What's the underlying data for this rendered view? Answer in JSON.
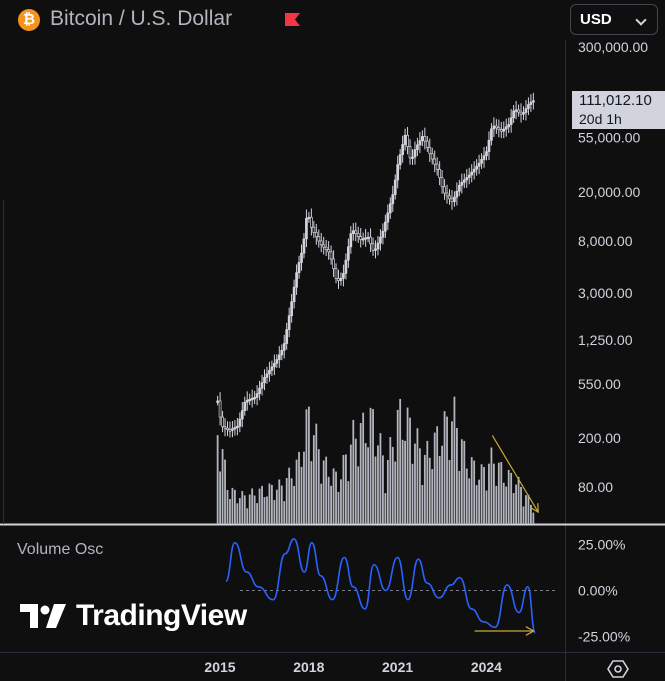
{
  "header": {
    "title": "Bitcoin / U.S. Dollar",
    "coin_icon_glyph": "₿",
    "coin_icon": "bitcoin-icon",
    "flag_icon": "red-flag-icon",
    "currency": "USD"
  },
  "price_label": {
    "price": "111,012.10",
    "countdown": "20d 1h"
  },
  "colors": {
    "background": "#0f0f0f",
    "candles": "#d1d4dc",
    "volume": "#b2b5be",
    "oscillator": "#2962ff",
    "annotation_arrows": "#c9a93b",
    "bitcoin": "#f7931a",
    "flag": "#f23645"
  },
  "watermark": "TradingView",
  "chart_data": [
    {
      "type": "candlestick",
      "title": "Bitcoin / U.S. Dollar",
      "timeframe": "1M",
      "scale": "log",
      "ylim": [
        45,
        300000
      ],
      "y_tick_labels": [
        "300,000.00",
        "55,000.00",
        "20,000.00",
        "8,000.00",
        "3,000.00",
        "1,250.00",
        "550.00",
        "200.00",
        "80.00"
      ],
      "y_ticks": [
        300000,
        55000,
        20000,
        8000,
        3000,
        1250,
        550,
        200,
        80
      ],
      "x_tick_labels": [
        "2015",
        "2018",
        "2021",
        "2024"
      ],
      "x_ticks": [
        2015,
        2018,
        2021,
        2024
      ],
      "xlim": [
        2012.3,
        2026.8
      ],
      "grid": false,
      "last_price": 111012.1,
      "price_points": [
        {
          "x": 2014.92,
          "y": 400
        },
        {
          "x": 2015.05,
          "y": 250
        },
        {
          "x": 2015.3,
          "y": 230
        },
        {
          "x": 2015.6,
          "y": 250
        },
        {
          "x": 2015.85,
          "y": 400
        },
        {
          "x": 2016.2,
          "y": 430
        },
        {
          "x": 2016.5,
          "y": 620
        },
        {
          "x": 2016.9,
          "y": 850
        },
        {
          "x": 2017.15,
          "y": 1100
        },
        {
          "x": 2017.4,
          "y": 2400
        },
        {
          "x": 2017.6,
          "y": 4600
        },
        {
          "x": 2017.8,
          "y": 7000
        },
        {
          "x": 2017.95,
          "y": 14000
        },
        {
          "x": 2018.1,
          "y": 10000
        },
        {
          "x": 2018.4,
          "y": 7500
        },
        {
          "x": 2018.7,
          "y": 6400
        },
        {
          "x": 2018.95,
          "y": 3700
        },
        {
          "x": 2019.15,
          "y": 4100
        },
        {
          "x": 2019.45,
          "y": 10000
        },
        {
          "x": 2019.75,
          "y": 8200
        },
        {
          "x": 2020.0,
          "y": 8600
        },
        {
          "x": 2020.2,
          "y": 6400
        },
        {
          "x": 2020.5,
          "y": 9500
        },
        {
          "x": 2020.85,
          "y": 19500
        },
        {
          "x": 2021.0,
          "y": 33000
        },
        {
          "x": 2021.25,
          "y": 58000
        },
        {
          "x": 2021.45,
          "y": 35000
        },
        {
          "x": 2021.6,
          "y": 45000
        },
        {
          "x": 2021.85,
          "y": 57000
        },
        {
          "x": 2022.1,
          "y": 40000
        },
        {
          "x": 2022.35,
          "y": 30000
        },
        {
          "x": 2022.55,
          "y": 20000
        },
        {
          "x": 2022.85,
          "y": 16500
        },
        {
          "x": 2023.1,
          "y": 23000
        },
        {
          "x": 2023.4,
          "y": 27000
        },
        {
          "x": 2023.75,
          "y": 34000
        },
        {
          "x": 2024.0,
          "y": 42000
        },
        {
          "x": 2024.2,
          "y": 70000
        },
        {
          "x": 2024.5,
          "y": 62000
        },
        {
          "x": 2024.75,
          "y": 70000
        },
        {
          "x": 2024.95,
          "y": 95000
        },
        {
          "x": 2025.2,
          "y": 84000
        },
        {
          "x": 2025.45,
          "y": 105000
        },
        {
          "x": 2025.62,
          "y": 111012.1
        }
      ],
      "volume_peaks": [
        {
          "x": 2014.95,
          "v": 0.85
        },
        {
          "x": 2015.3,
          "v": 0.3
        },
        {
          "x": 2015.8,
          "v": 0.25
        },
        {
          "x": 2016.4,
          "v": 0.3
        },
        {
          "x": 2017.1,
          "v": 0.35
        },
        {
          "x": 2017.65,
          "v": 0.55
        },
        {
          "x": 2018.0,
          "v": 1.0
        },
        {
          "x": 2018.5,
          "v": 0.55
        },
        {
          "x": 2019.0,
          "v": 0.4
        },
        {
          "x": 2019.5,
          "v": 0.8
        },
        {
          "x": 2020.2,
          "v": 0.95
        },
        {
          "x": 2020.6,
          "v": 0.5
        },
        {
          "x": 2021.05,
          "v": 1.0
        },
        {
          "x": 2021.4,
          "v": 0.9
        },
        {
          "x": 2021.9,
          "v": 0.6
        },
        {
          "x": 2022.5,
          "v": 0.85
        },
        {
          "x": 2022.9,
          "v": 1.0
        },
        {
          "x": 2023.3,
          "v": 0.6
        },
        {
          "x": 2023.8,
          "v": 0.45
        },
        {
          "x": 2024.2,
          "v": 0.6
        },
        {
          "x": 2024.6,
          "v": 0.45
        },
        {
          "x": 2025.0,
          "v": 0.4
        },
        {
          "x": 2025.6,
          "v": 0.15
        }
      ],
      "annotations": [
        {
          "kind": "arrow",
          "from": {
            "x": 2024.2,
            "y": 210
          },
          "to": {
            "x": 2025.75,
            "y": 50
          }
        }
      ]
    },
    {
      "type": "line",
      "title": "Volume Osc",
      "ylim": [
        -30,
        30
      ],
      "y_tick_labels": [
        "25.00%",
        "0.00%",
        "-25.00%"
      ],
      "y_ticks": [
        25,
        0,
        -25
      ],
      "zero_line": true,
      "x": [
        2015.2,
        2015.5,
        2015.9,
        2016.3,
        2016.8,
        2017.2,
        2017.5,
        2017.85,
        2018.1,
        2018.4,
        2018.8,
        2019.2,
        2019.5,
        2019.9,
        2020.2,
        2020.6,
        2021.0,
        2021.35,
        2021.7,
        2022.0,
        2022.4,
        2022.8,
        2023.1,
        2023.5,
        2023.9,
        2024.3,
        2024.7,
        2025.1,
        2025.4,
        2025.65
      ],
      "values": [
        5,
        26,
        10,
        2,
        -5,
        20,
        28,
        10,
        26,
        8,
        -5,
        18,
        2,
        -10,
        14,
        0,
        18,
        -5,
        17,
        4,
        -4,
        3,
        7,
        -10,
        -17,
        -20,
        3,
        -12,
        2,
        -23
      ],
      "annotations": [
        {
          "kind": "arrow",
          "from": {
            "x": 2023.6,
            "y": -22
          },
          "to": {
            "x": 2025.6,
            "y": -22
          }
        }
      ]
    }
  ]
}
